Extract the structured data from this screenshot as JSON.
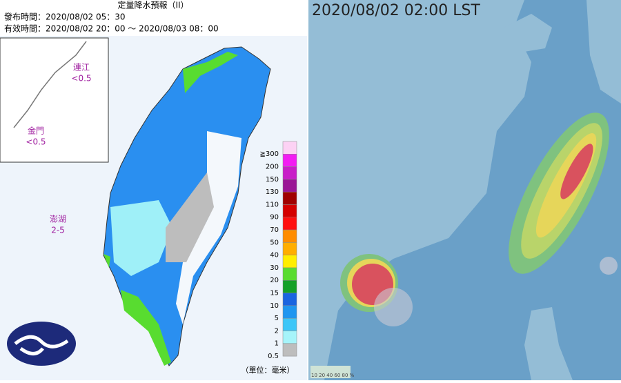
{
  "left": {
    "title": "定量降水預報（II）",
    "issued": "發布時間：2020/08/02 05：30",
    "valid": "有效時間：2020/08/02 20：00 ～ 2020/08/03 08：00",
    "islands": [
      {
        "name": "連江",
        "amount": "<0.5"
      },
      {
        "name": "金門",
        "amount": "<0.5"
      },
      {
        "name": "澎湖",
        "amount": "2-5"
      }
    ],
    "legend": [
      {
        "label": "≧300",
        "color": "#fcd2f4"
      },
      {
        "label": "200",
        "color": "#f21cf2"
      },
      {
        "label": "150",
        "color": "#c81ec8"
      },
      {
        "label": "130",
        "color": "#9a1696"
      },
      {
        "label": "110",
        "color": "#a00000"
      },
      {
        "label": "90",
        "color": "#d40000"
      },
      {
        "label": "70",
        "color": "#ff1010"
      },
      {
        "label": "50",
        "color": "#ff8c00"
      },
      {
        "label": "40",
        "color": "#ffae00"
      },
      {
        "label": "30",
        "color": "#ffee00"
      },
      {
        "label": "20",
        "color": "#58dc30"
      },
      {
        "label": "15",
        "color": "#14a028"
      },
      {
        "label": "10",
        "color": "#1a64e0"
      },
      {
        "label": "5",
        "color": "#1e96f0"
      },
      {
        "label": "2",
        "color": "#3cc6f8"
      },
      {
        "label": "1",
        "color": "#a6f4fa"
      },
      {
        "label": "0.5",
        "color": "#bdbdbd"
      }
    ],
    "unit": "（單位：毫米）"
  },
  "right": {
    "title": "2020/08/02 02:00 LST",
    "legend": "10 20 40 60 80 %"
  }
}
